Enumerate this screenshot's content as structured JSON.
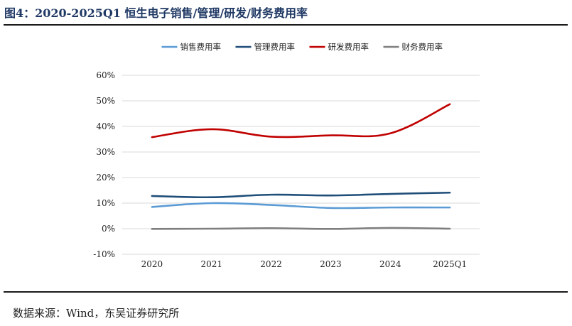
{
  "figure": {
    "title": "图4：2020-2025Q1 恒生电子销售/管理/研发/财务费用率",
    "source": "数据来源：Wind，东吴证券研究所"
  },
  "chart_data": {
    "type": "line",
    "categories": [
      "2020",
      "2021",
      "2022",
      "2023",
      "2024",
      "2025Q1"
    ],
    "ylim": [
      -10,
      60
    ],
    "yticks": [
      -10,
      0,
      10,
      20,
      30,
      40,
      50,
      60
    ],
    "ytick_labels": [
      "-10%",
      "0%",
      "10%",
      "20%",
      "30%",
      "40%",
      "50%",
      "60%"
    ],
    "grid": true,
    "legend_position": "top",
    "series": [
      {
        "name": "销售费用率",
        "color": "#5b9bd5",
        "values": [
          8.5,
          10.0,
          9.3,
          8.1,
          8.3,
          8.3
        ]
      },
      {
        "name": "管理费用率",
        "color": "#1f4e79",
        "values": [
          12.8,
          12.3,
          13.3,
          13.0,
          13.6,
          14.1
        ]
      },
      {
        "name": "研发费用率",
        "color": "#c00000",
        "values": [
          35.8,
          38.9,
          36.0,
          36.5,
          37.3,
          48.7
        ]
      },
      {
        "name": "财务费用率",
        "color": "#7f7f7f",
        "values": [
          -0.1,
          0.0,
          0.2,
          -0.1,
          0.3,
          0.0
        ]
      }
    ]
  }
}
